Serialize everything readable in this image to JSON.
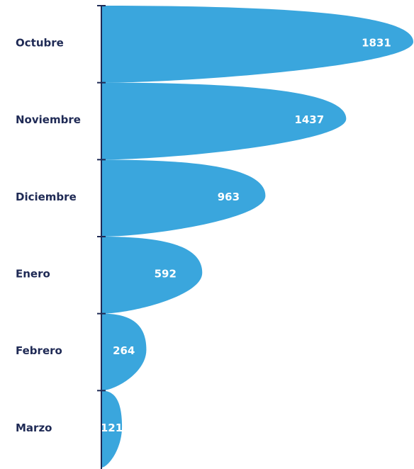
{
  "chart_data": {
    "type": "teardrop-bar",
    "categories": [
      "Octubre",
      "Noviembre",
      "Diciembre",
      "Enero",
      "Febrero",
      "Marzo"
    ],
    "values": [
      1831,
      1437,
      963,
      592,
      264,
      121
    ],
    "color": "#3aa6dd"
  }
}
